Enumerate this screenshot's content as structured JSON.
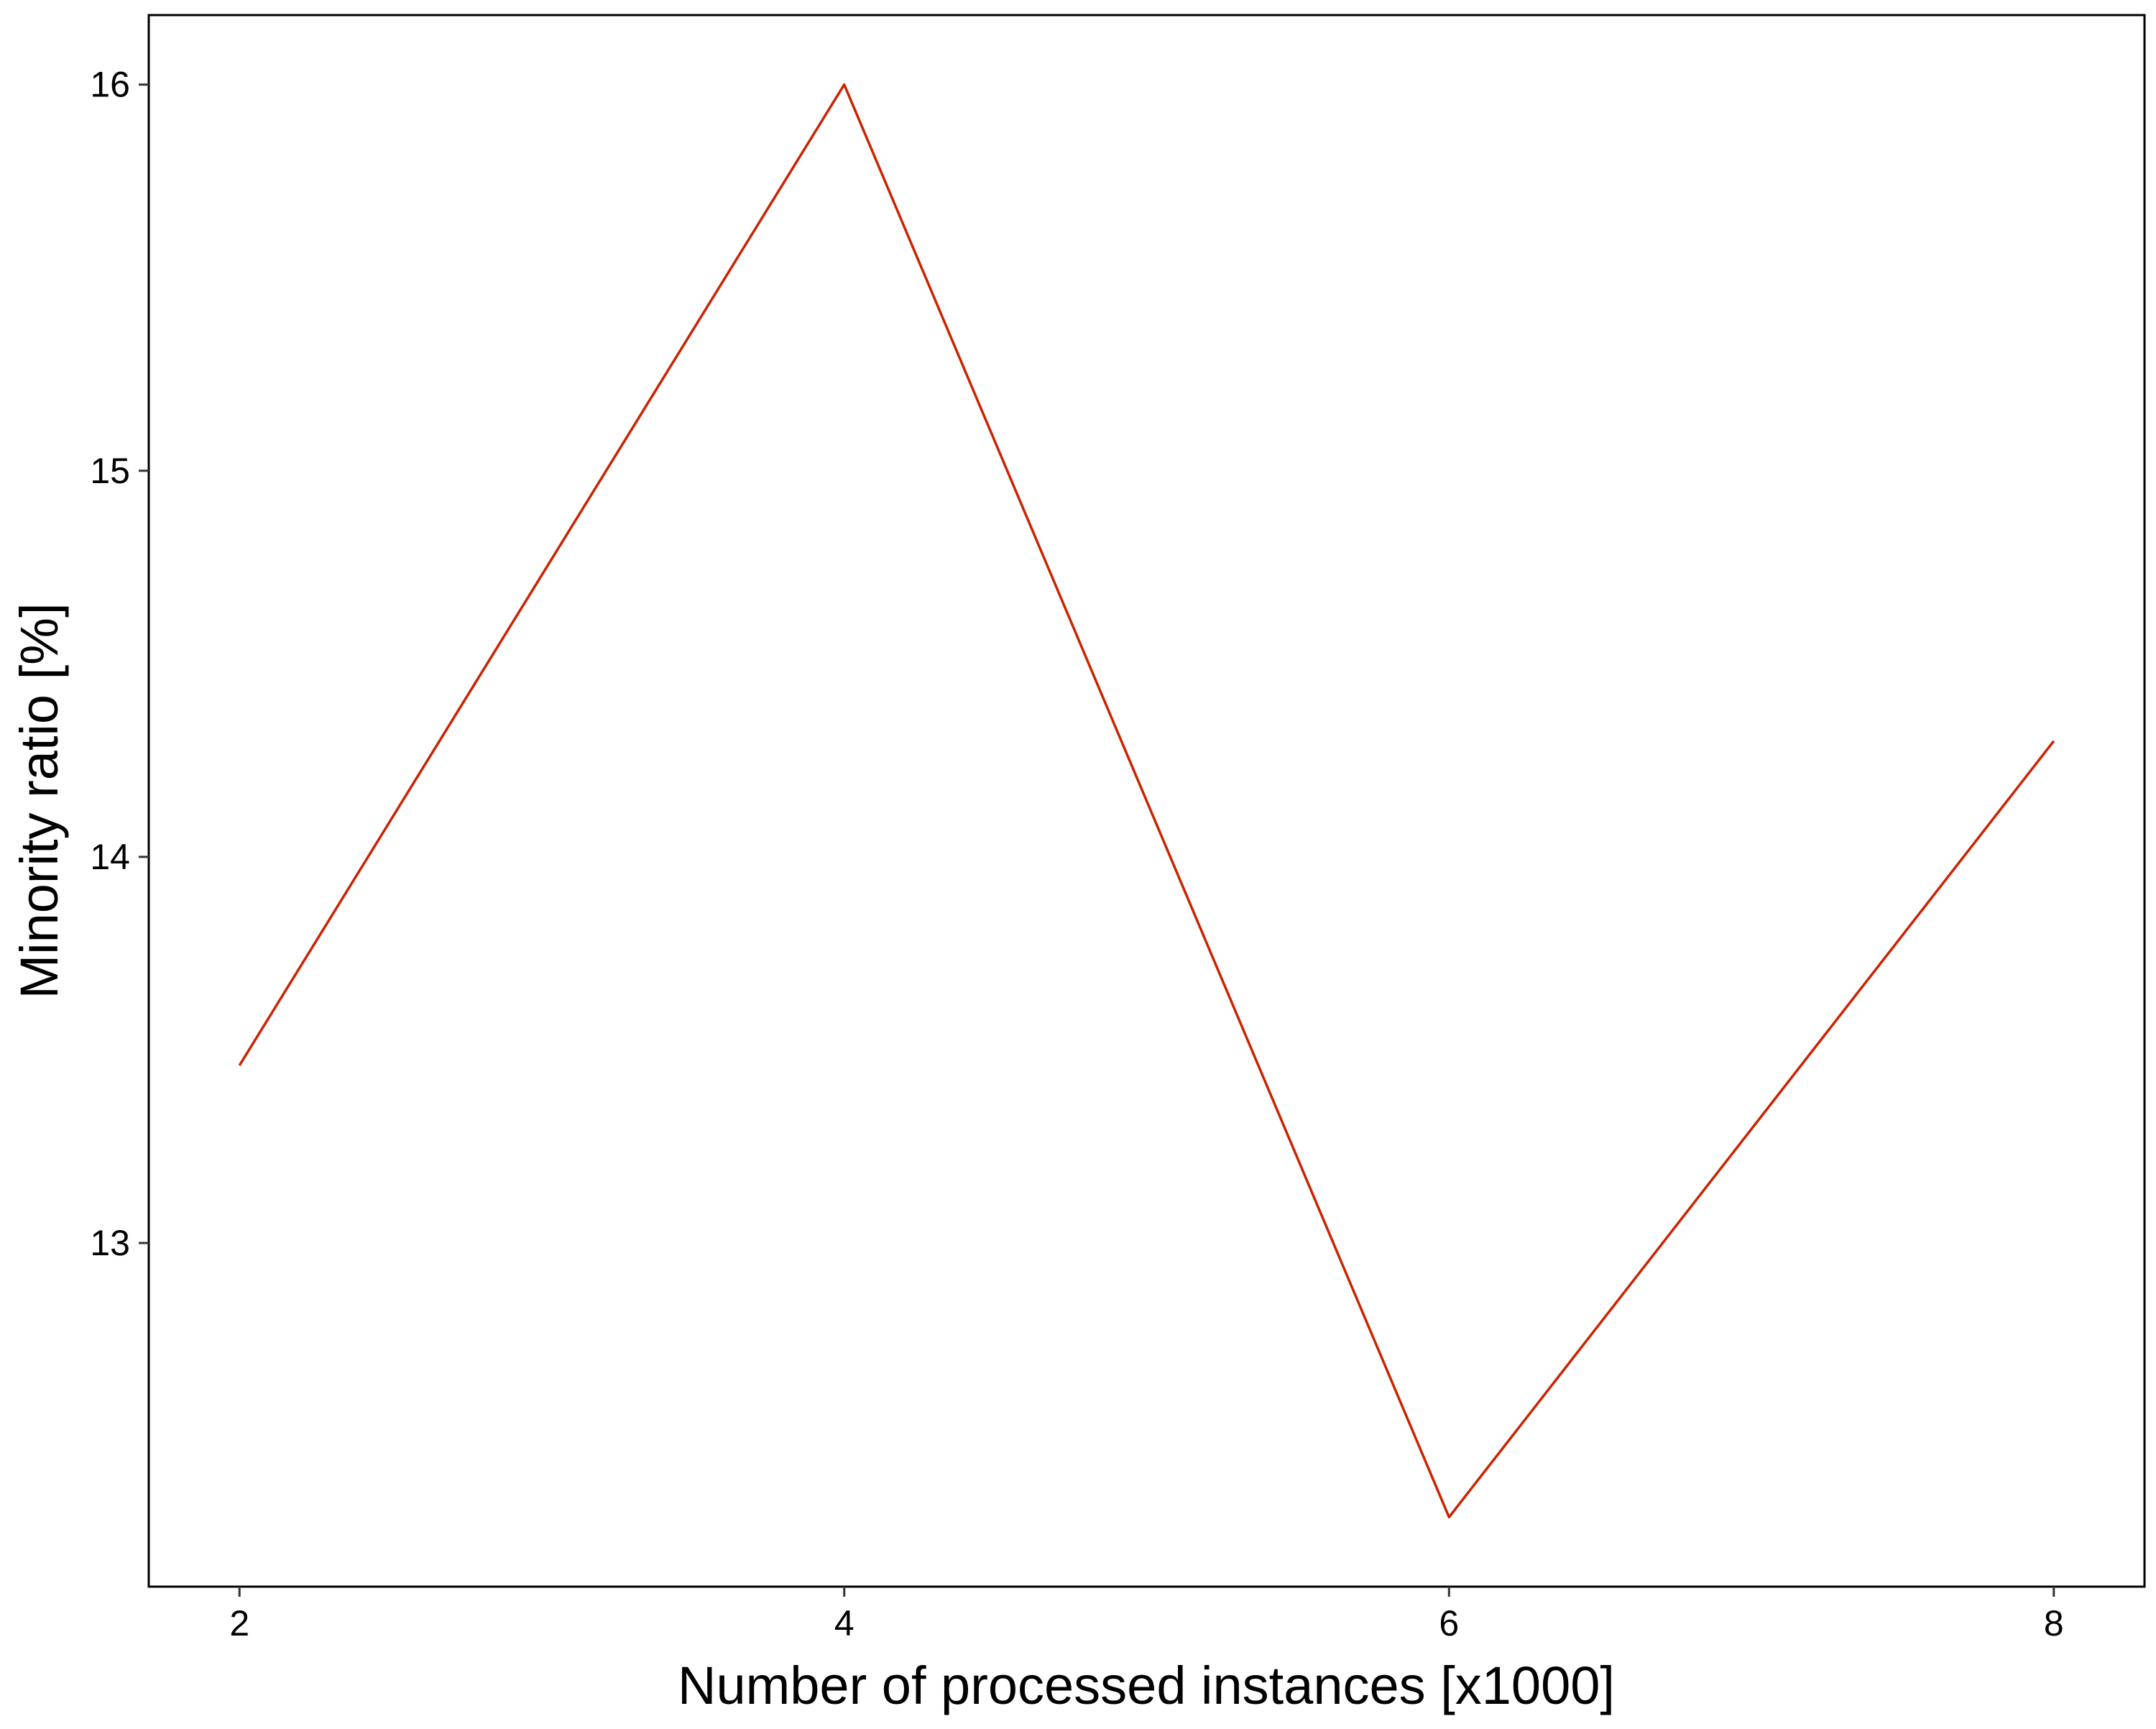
{
  "chart_data": {
    "type": "line",
    "title": "",
    "xlabel": "Number of processed instances [x1000]",
    "ylabel": "Minority ratio [%]",
    "x": [
      2,
      4,
      6,
      8
    ],
    "series": [
      {
        "values": [
          13.46,
          16.0,
          12.29,
          14.3
        ],
        "color": "#cc2200"
      }
    ],
    "xlim": [
      1.7,
      8.3
    ],
    "ylim": [
      12.11,
      16.18
    ],
    "xticks": [
      2,
      4,
      6,
      8
    ],
    "yticks": [
      13,
      14,
      15,
      16
    ],
    "xtick_labels": [
      "2",
      "4",
      "6",
      "8"
    ],
    "ytick_labels": [
      "13",
      "14",
      "15",
      "16"
    ],
    "grid": false,
    "legend": "none"
  }
}
